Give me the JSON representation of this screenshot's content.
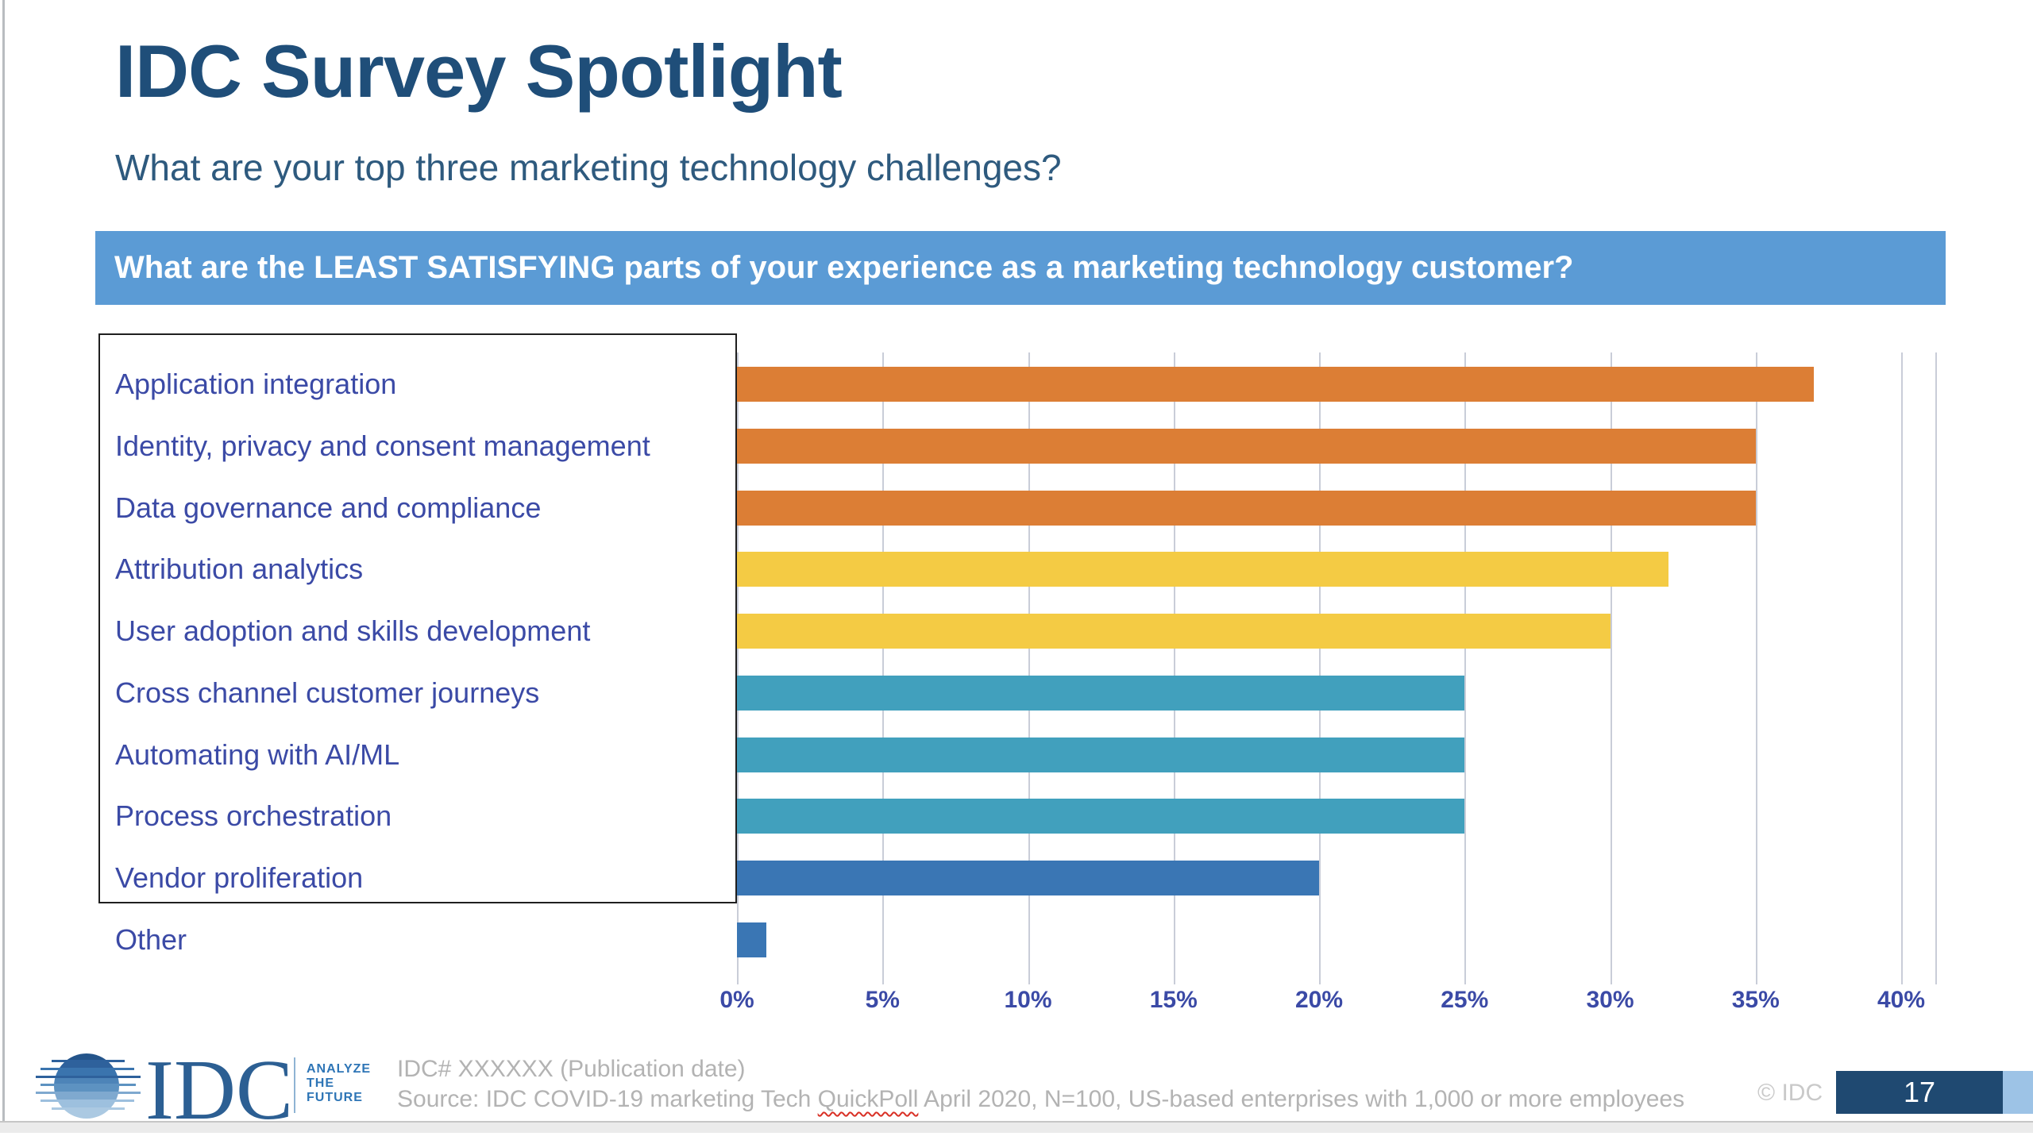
{
  "slide": {
    "title": "IDC Survey Spotlight",
    "subtitle": "What are your top three marketing technology challenges?",
    "banner": "What are the LEAST SATISFYING parts of your experience as a marketing technology customer?",
    "page_number": "17",
    "copyright": "© IDC"
  },
  "footer": {
    "logo_text": "IDC",
    "tagline_line1": "ANALYZE",
    "tagline_line2": "THE",
    "tagline_line3": "FUTURE",
    "doc_line": "IDC# XXXXXX (Publication date)",
    "source_prefix": "Source: IDC COVID-19 marketing Tech ",
    "source_spellchecked_word": "QuickPoll",
    "source_suffix": " April 2020, N=100, US-based enterprises with 1,000 or more employees"
  },
  "chart_data": {
    "type": "bar",
    "orientation": "horizontal",
    "title": "What are the LEAST SATISFYING parts of your experience as a marketing technology customer?",
    "categories": [
      "Application integration",
      "Identity, privacy and consent management",
      "Data governance and compliance",
      "Attribution analytics",
      "User adoption and skills development",
      "Cross channel customer journeys",
      "Automating with AI/ML",
      "Process orchestration",
      "Vendor proliferation",
      "Other"
    ],
    "values": [
      37,
      35,
      35,
      32,
      30,
      25,
      25,
      25,
      20,
      1
    ],
    "unit": "%",
    "xlim": [
      0,
      40
    ],
    "x_ticks": [
      "0%",
      "5%",
      "10%",
      "15%",
      "20%",
      "25%",
      "30%",
      "35%",
      "40%"
    ],
    "x_tick_values": [
      0,
      5,
      10,
      15,
      20,
      25,
      30,
      35,
      40
    ],
    "bar_colors": [
      "#dc7e35",
      "#dc7e35",
      "#dc7e35",
      "#f4cb44",
      "#f4cb44",
      "#41a0bd",
      "#41a0bd",
      "#41a0bd",
      "#3a76b4",
      "#3a76b4"
    ],
    "grid": true,
    "legend_position": "none"
  },
  "colors": {
    "title": "#1f4e79",
    "subtitle": "#2e5a7e",
    "banner": "#5b9bd5",
    "labelblue": "#3b4aa6",
    "grid": "#c9cdd8",
    "pagebox": "#1f4971",
    "pagestrip": "#9dc3e6"
  }
}
